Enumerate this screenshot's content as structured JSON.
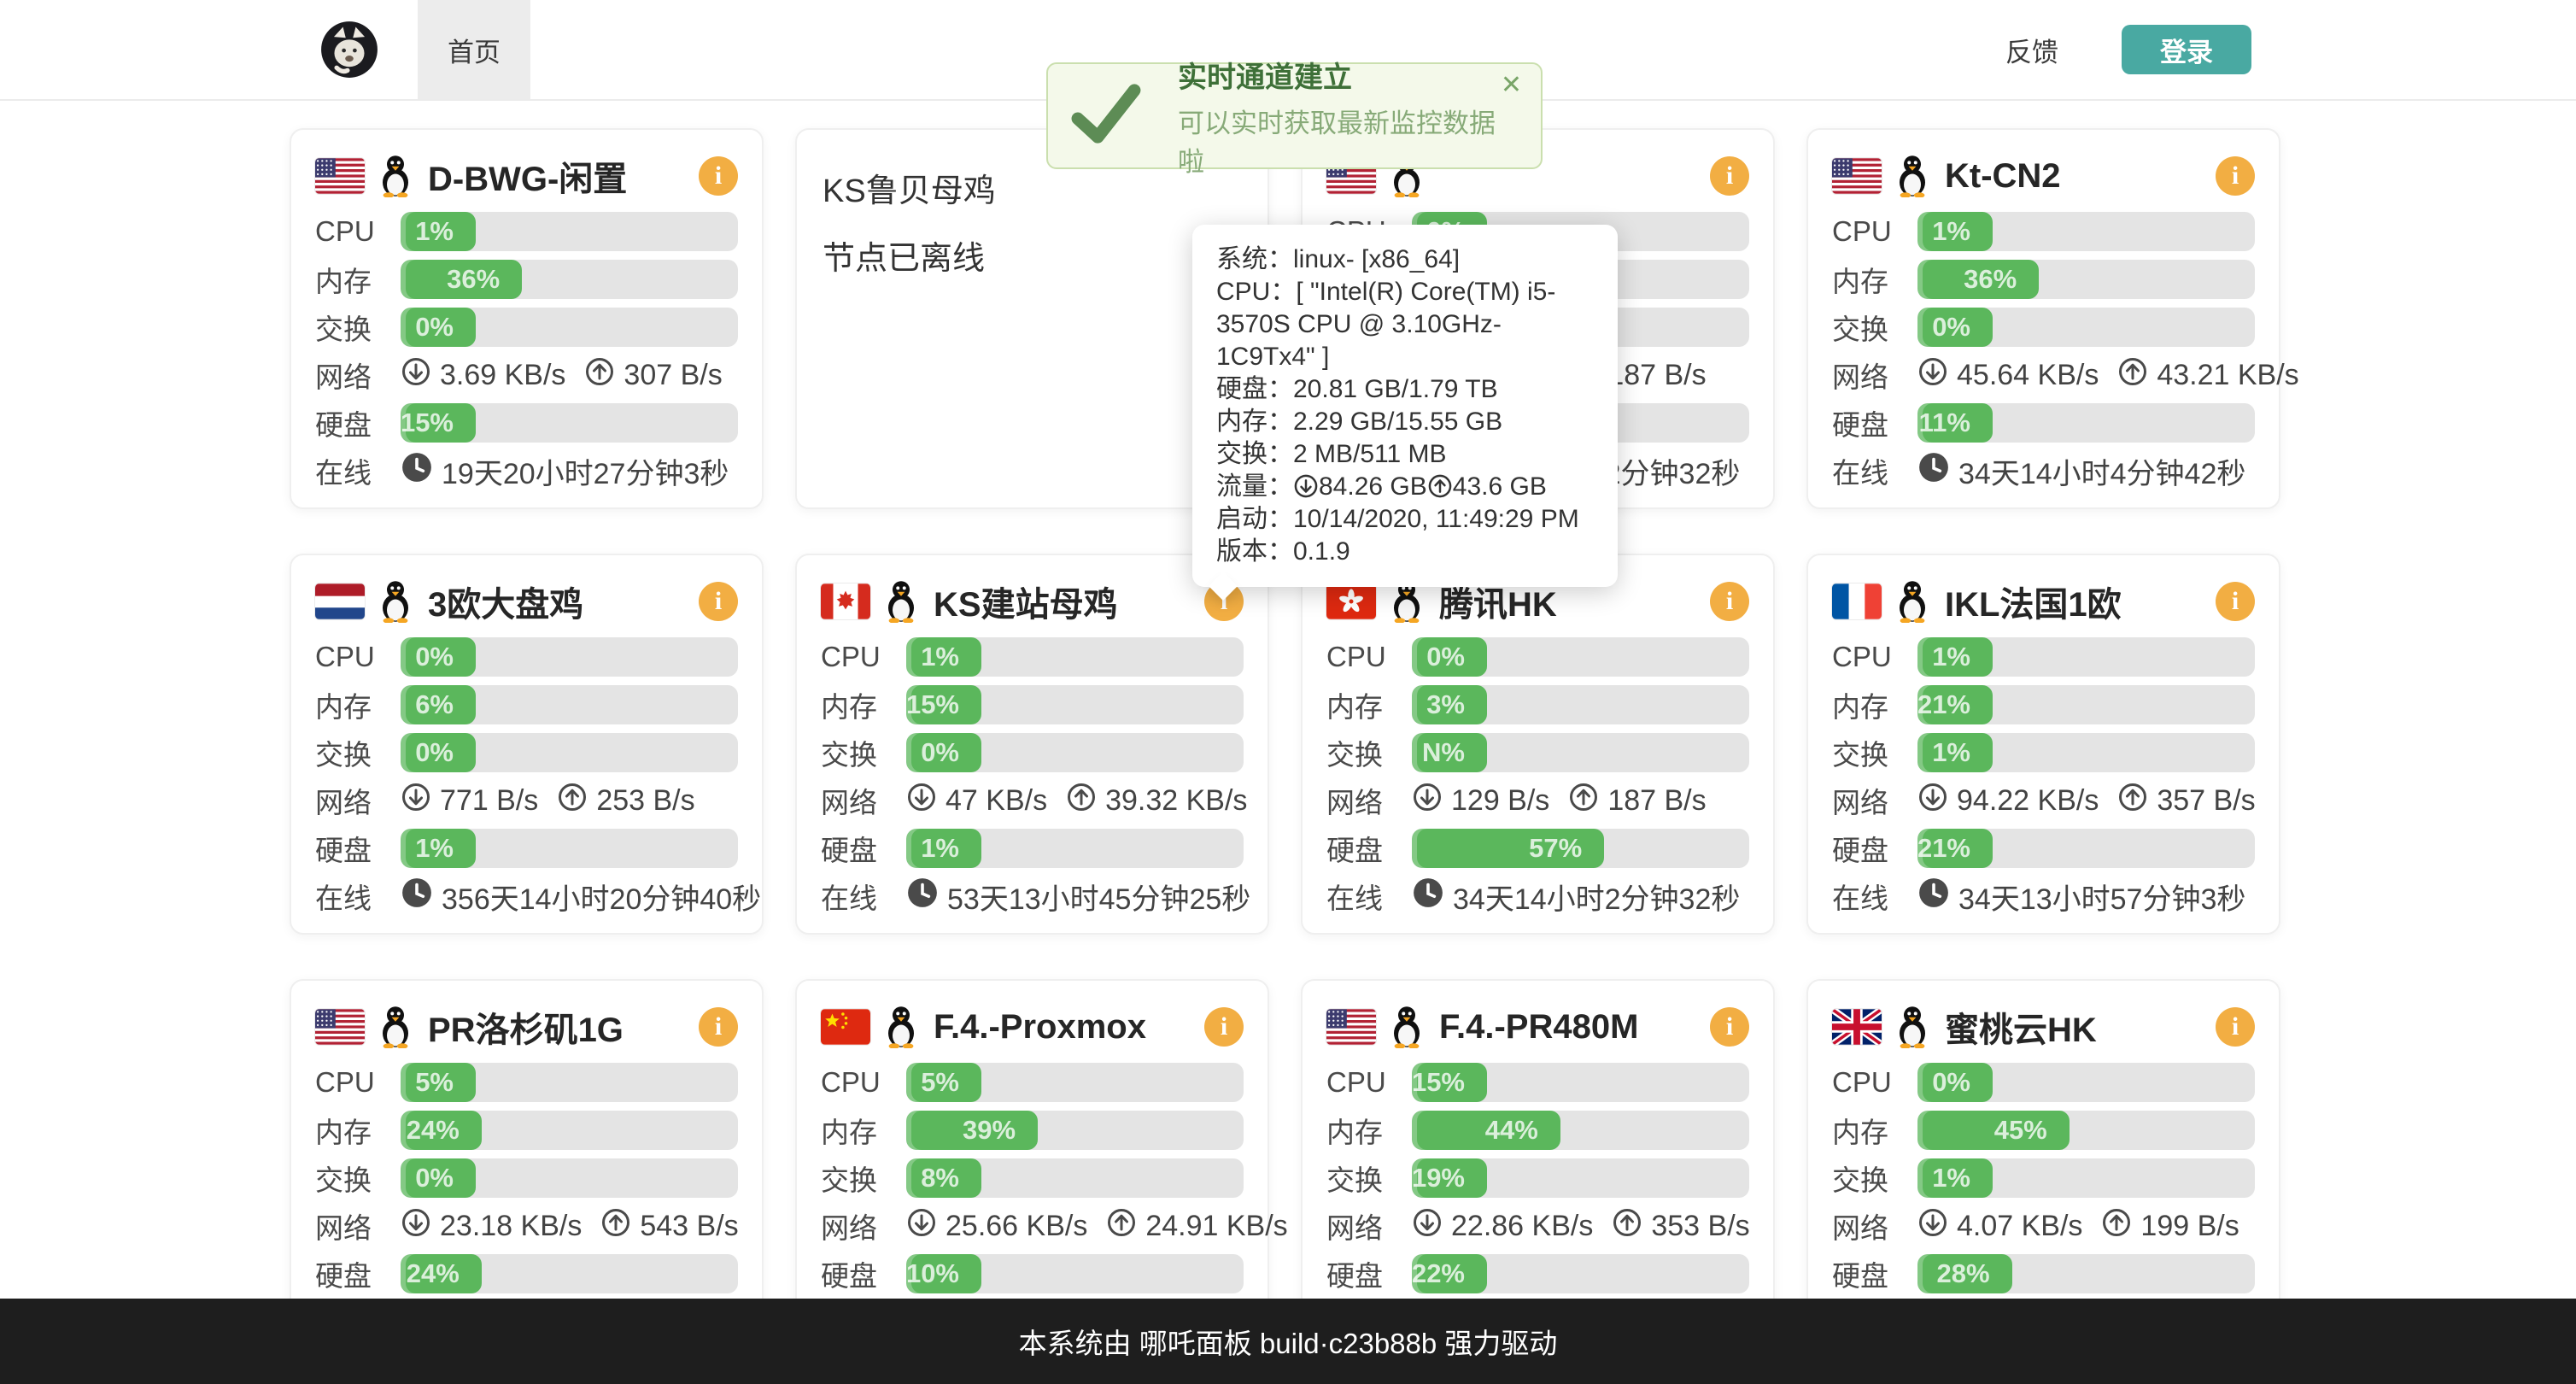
{
  "colors": {
    "progress_green": "#5bb75c",
    "track_gray": "#e4e4e4",
    "info_icon_orange": "#f2ae43",
    "login_teal": "#49a9a2",
    "toast_green_text": "#3e7038",
    "footer_bg": "#1e1e1e"
  },
  "icons": {
    "logo": "meme-cat-avatar",
    "info_glyph": "i",
    "flag_note": "country-flag-icons",
    "os_note": "linux-tux-icon"
  },
  "navbar": {
    "home_tab": "首页",
    "feedback": "反馈",
    "login": "登录"
  },
  "toast": {
    "title": "实时通道建立",
    "message": "可以实时获取最新监控数据啦",
    "close": "✕"
  },
  "tooltip": {
    "rows": [
      {
        "label": "系统：",
        "value": "linux- [x86_64]"
      },
      {
        "label": "CPU：",
        "value": "[ \"Intel(R) Core(TM) i5-3570S CPU @ 3.10GHz-1C9Tx4\" ]"
      },
      {
        "label": "硬盘：",
        "value": "20.81 GB/1.79 TB"
      },
      {
        "label": "内存：",
        "value": "2.29 GB/15.55 GB"
      },
      {
        "label": "交换：",
        "value": "2 MB/511 MB"
      },
      {
        "label": "流量：",
        "down": "84.26 GB",
        "up": "43.6 GB"
      },
      {
        "label": "启动：",
        "value": "10/14/2020, 11:49:29 PM"
      },
      {
        "label": "版本：",
        "value": "0.1.9"
      }
    ]
  },
  "stat_labels": {
    "cpu": "CPU",
    "mem": "内存",
    "swap": "交换",
    "net": "网络",
    "disk": "硬盘",
    "uptime": "在线"
  },
  "servers": [
    {
      "name": "D-BWG-闲置",
      "flag": "flag-us",
      "offline": false,
      "cpu": {
        "pct": 1,
        "label": "1%"
      },
      "mem": {
        "pct": 36,
        "label": "36%"
      },
      "swap": {
        "pct": 0,
        "label": "0%"
      },
      "disk": {
        "pct": 15,
        "label": "15%"
      },
      "net": {
        "down": "3.69 KB/s",
        "up": "307 B/s"
      },
      "uptime": "19天20小时27分钟3秒"
    },
    {
      "name": "KS鲁贝母鸡",
      "offline": true,
      "status": "节点已离线"
    },
    {
      "name": "",
      "flag": "flag-us",
      "offline": false,
      "cpu": {
        "pct": 0,
        "label": "0%"
      },
      "mem": {
        "pct": 3,
        "label": "3%"
      },
      "swap": {
        "pct": 0,
        "label": "0%"
      },
      "disk": {
        "pct": 57,
        "label": "57%"
      },
      "net": {
        "down": "129 B/s",
        "up": "187 B/s"
      },
      "uptime": "34天14小时2分钟32秒"
    },
    {
      "name": "Kt-CN2",
      "flag": "flag-us",
      "offline": false,
      "cpu": {
        "pct": 1,
        "label": "1%"
      },
      "mem": {
        "pct": 36,
        "label": "36%"
      },
      "swap": {
        "pct": 0,
        "label": "0%"
      },
      "disk": {
        "pct": 11,
        "label": "11%"
      },
      "net": {
        "down": "45.64 KB/s",
        "up": "43.21 KB/s"
      },
      "uptime": "34天14小时4分钟42秒"
    },
    {
      "name": "3欧大盘鸡",
      "flag": "flag-nl",
      "offline": false,
      "cpu": {
        "pct": 0,
        "label": "0%"
      },
      "mem": {
        "pct": 6,
        "label": "6%"
      },
      "swap": {
        "pct": 0,
        "label": "0%"
      },
      "disk": {
        "pct": 1,
        "label": "1%"
      },
      "net": {
        "down": "771 B/s",
        "up": "253 B/s"
      },
      "uptime": "356天14小时20分钟40秒"
    },
    {
      "name": "KS建站母鸡",
      "flag": "flag-ca",
      "offline": false,
      "cpu": {
        "pct": 1,
        "label": "1%"
      },
      "mem": {
        "pct": 15,
        "label": "15%"
      },
      "swap": {
        "pct": 0,
        "label": "0%"
      },
      "disk": {
        "pct": 1,
        "label": "1%"
      },
      "net": {
        "down": "47 KB/s",
        "up": "39.32 KB/s"
      },
      "uptime": "53天13小时45分钟25秒"
    },
    {
      "name": "腾讯HK",
      "flag": "flag-hk",
      "offline": false,
      "cpu": {
        "pct": 0,
        "label": "0%"
      },
      "mem": {
        "pct": 3,
        "label": "3%"
      },
      "swap": {
        "pct": 0,
        "label": "N%"
      },
      "disk": {
        "pct": 57,
        "label": "57%"
      },
      "net": {
        "down": "129 B/s",
        "up": "187 B/s"
      },
      "uptime": "34天14小时2分钟32秒"
    },
    {
      "name": "IKL法国1欧",
      "flag": "flag-fr",
      "offline": false,
      "cpu": {
        "pct": 1,
        "label": "1%"
      },
      "mem": {
        "pct": 21,
        "label": "21%"
      },
      "swap": {
        "pct": 1,
        "label": "1%"
      },
      "disk": {
        "pct": 21,
        "label": "21%"
      },
      "net": {
        "down": "94.22 KB/s",
        "up": "357 B/s"
      },
      "uptime": "34天13小时57分钟3秒"
    },
    {
      "name": "PR洛杉矶1G",
      "flag": "flag-us",
      "offline": false,
      "cpu": {
        "pct": 5,
        "label": "5%"
      },
      "mem": {
        "pct": 24,
        "label": "24%"
      },
      "swap": {
        "pct": 0,
        "label": "0%"
      },
      "disk": {
        "pct": 24,
        "label": "24%"
      },
      "net": {
        "down": "23.18 KB/s",
        "up": "543 B/s"
      },
      "uptime": ""
    },
    {
      "name": "F.4.-Proxmox",
      "flag": "flag-cn",
      "offline": false,
      "cpu": {
        "pct": 5,
        "label": "5%"
      },
      "mem": {
        "pct": 39,
        "label": "39%"
      },
      "swap": {
        "pct": 8,
        "label": "8%"
      },
      "disk": {
        "pct": 10,
        "label": "10%"
      },
      "net": {
        "down": "25.66 KB/s",
        "up": "24.91 KB/s"
      },
      "uptime": ""
    },
    {
      "name": "F.4.-PR480M",
      "flag": "flag-us",
      "offline": false,
      "cpu": {
        "pct": 15,
        "label": "15%"
      },
      "mem": {
        "pct": 44,
        "label": "44%"
      },
      "swap": {
        "pct": 19,
        "label": "19%"
      },
      "disk": {
        "pct": 22,
        "label": "22%"
      },
      "net": {
        "down": "22.86 KB/s",
        "up": "353 B/s"
      },
      "uptime": ""
    },
    {
      "name": "蜜桃云HK",
      "flag": "flag-gb",
      "offline": false,
      "cpu": {
        "pct": 0,
        "label": "0%"
      },
      "mem": {
        "pct": 45,
        "label": "45%"
      },
      "swap": {
        "pct": 1,
        "label": "1%"
      },
      "disk": {
        "pct": 28,
        "label": "28%"
      },
      "net": {
        "down": "4.07 KB/s",
        "up": "199 B/s"
      },
      "uptime": ""
    }
  ],
  "footer": {
    "text": "本系统由 哪吒面板 build·c23b88b 强力驱动"
  }
}
